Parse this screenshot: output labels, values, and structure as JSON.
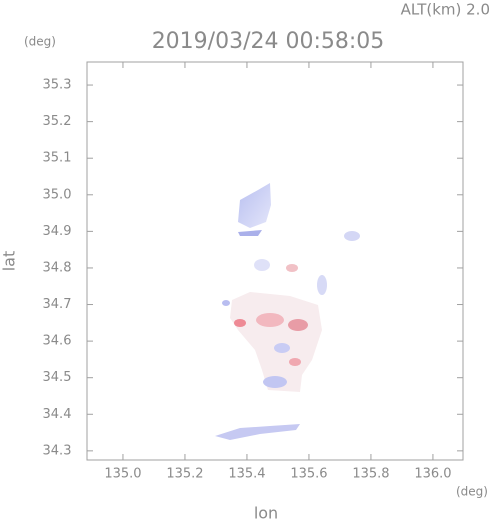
{
  "chart_data": {
    "type": "map",
    "title": "2019/03/24 00:58:05",
    "annotation": "ALT(km) 2.0",
    "x_label": "lon",
    "y_label": "lat",
    "x_unit": "(deg)",
    "y_unit": "(deg)",
    "xlim": [
      134.884,
      136.097
    ],
    "ylim": [
      34.275,
      35.363
    ],
    "xticks": [
      {
        "value": 135,
        "label": "135.0"
      },
      135.2,
      135.4,
      135.6,
      135.8,
      {
        "value": 136,
        "label": "136.0"
      }
    ],
    "yticks": [
      34.3,
      34.4,
      34.5,
      34.6,
      34.7,
      34.8,
      34.9,
      {
        "value": 35,
        "label": "35.0"
      },
      35.1,
      35.2,
      35.3
    ]
  }
}
